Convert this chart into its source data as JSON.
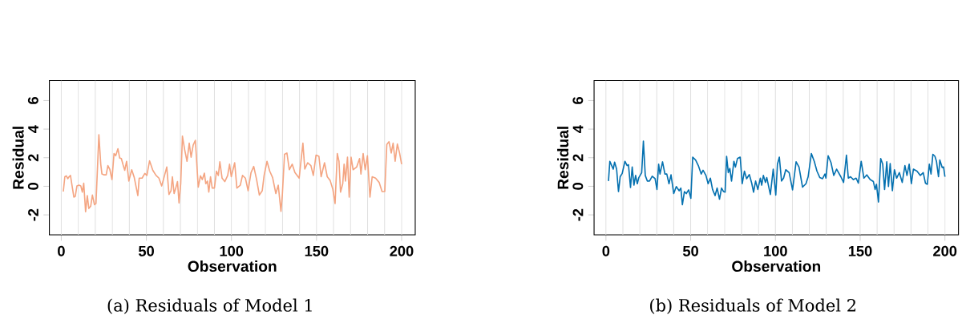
{
  "chart_data": [
    {
      "type": "line",
      "title": "(a) Residuals of Model 1",
      "xlabel": "Observation",
      "ylabel": "Residual",
      "xlim": [
        -7,
        208
      ],
      "ylim": [
        -3.4,
        7.4
      ],
      "xticks": [
        0,
        50,
        100,
        150,
        200
      ],
      "yticks": [
        -2,
        0,
        2,
        4,
        6
      ],
      "ref_lines": [
        {
          "axis": "x",
          "value": 0,
          "color": "#dcdcdc"
        },
        {
          "axis": "x",
          "value": 10,
          "color": "#dcdcdc"
        },
        {
          "axis": "x",
          "value": 20,
          "color": "#dcdcdc"
        },
        {
          "axis": "x",
          "value": 30,
          "color": "#dcdcdc"
        },
        {
          "axis": "x",
          "value": 40,
          "color": "#dcdcdc"
        },
        {
          "axis": "x",
          "value": 50,
          "color": "#dcdcdc"
        },
        {
          "axis": "x",
          "value": 60,
          "color": "#dcdcdc"
        },
        {
          "axis": "x",
          "value": 70,
          "color": "#dcdcdc"
        },
        {
          "axis": "x",
          "value": 80,
          "color": "#dcdcdc"
        },
        {
          "axis": "x",
          "value": 90,
          "color": "#dcdcdc"
        },
        {
          "axis": "x",
          "value": 100,
          "color": "#dcdcdc"
        },
        {
          "axis": "x",
          "value": 110,
          "color": "#dcdcdc"
        },
        {
          "axis": "x",
          "value": 120,
          "color": "#dcdcdc"
        },
        {
          "axis": "x",
          "value": 130,
          "color": "#dcdcdc"
        },
        {
          "axis": "x",
          "value": 140,
          "color": "#dcdcdc"
        },
        {
          "axis": "x",
          "value": 150,
          "color": "#dcdcdc"
        },
        {
          "axis": "x",
          "value": 160,
          "color": "#dcdcdc"
        },
        {
          "axis": "x",
          "value": 170,
          "color": "#dcdcdc"
        },
        {
          "axis": "x",
          "value": 180,
          "color": "#dcdcdc"
        },
        {
          "axis": "x",
          "value": 190,
          "color": "#dcdcdc"
        },
        {
          "axis": "x",
          "value": 200,
          "color": "#dcdcdc"
        }
      ],
      "series": [
        {
          "color": "#f4a582",
          "x": [
            1.2,
            2.1,
            3.0,
            3.8,
            4.6,
            5.4,
            6.3,
            7.4,
            8.2,
            9.2,
            10.4,
            11.5,
            12.4,
            13.2,
            14.3,
            15.3,
            16.2,
            17.3,
            18.3,
            19.5,
            20.4,
            21.1,
            22.1,
            23.2,
            23.9,
            25.2,
            26.4,
            27.4,
            28.5,
            29.8,
            31.0,
            32.0,
            33.3,
            34.3,
            35.3,
            36.3,
            37.3,
            38.4,
            39.7,
            41.4,
            42.9,
            45.0,
            45.8,
            47.5,
            49.1,
            50.3,
            51.9,
            53.8,
            55.7,
            57.4,
            59.0,
            60.7,
            62.0,
            63.3,
            64.5,
            65.3,
            66.3,
            67.3,
            68.3,
            69.2,
            70.2,
            71.2,
            72.5,
            73.9,
            75.2,
            76.3,
            77.5,
            78.8,
            80.5,
            81.8,
            82.9,
            84.1,
            84.9,
            85.9,
            86.7,
            87.7,
            88.7,
            90.0,
            91.2,
            92.3,
            93.2,
            94.5,
            96.1,
            97.8,
            98.9,
            99.9,
            101.9,
            103.2,
            105.2,
            106.5,
            108.2,
            109.8,
            111.5,
            113.1,
            114.8,
            116.4,
            118.1,
            119.2,
            120.9,
            122.5,
            124.2,
            126.1,
            127.5,
            129.1,
            129.9,
            131.2,
            132.6,
            134.0,
            135.7,
            137.3,
            139.8,
            142.0,
            143.1,
            144.8,
            146.7,
            148.1,
            149.7,
            151.4,
            152.7,
            154.7,
            156.3,
            158.0,
            159.6,
            160.9,
            162.2,
            163.2,
            164.1,
            165.4,
            166.2,
            167.0,
            168.2,
            169.2,
            170.3,
            171.5,
            173.6,
            175.3,
            176.1,
            177.4,
            178.6,
            179.9,
            181.4,
            182.7,
            184.7,
            186.8,
            188.5,
            190.1,
            191.3,
            192.6,
            193.9,
            195.0,
            196.2,
            197.5,
            198.8,
            200.0
          ],
          "values": [
            -0.37,
            0.67,
            0.73,
            0.53,
            0.67,
            0.76,
            0.08,
            -0.76,
            -0.71,
            0.02,
            0.08,
            0.02,
            -0.41,
            0.22,
            -1.78,
            -0.65,
            -1.55,
            -1.39,
            -0.61,
            -1.29,
            -1.2,
            0.76,
            3.61,
            1.55,
            0.86,
            0.8,
            0.8,
            1.45,
            1.2,
            0.47,
            2.29,
            2.14,
            2.63,
            1.98,
            1.94,
            1.51,
            1.12,
            1.75,
            0.37,
            1.16,
            0.61,
            -0.65,
            0.57,
            0.57,
            0.9,
            0.76,
            1.78,
            1.12,
            0.76,
            0.57,
            0.02,
            0.76,
            1.35,
            -0.57,
            -0.31,
            0.67,
            -0.51,
            -0.12,
            0.33,
            -1.16,
            0.18,
            3.51,
            2.57,
            1.75,
            3.02,
            2.04,
            2.88,
            3.22,
            -0.06,
            0.73,
            0.47,
            0.92,
            0.18,
            0.37,
            -0.41,
            0.67,
            -0.12,
            -0.12,
            1.06,
            0.76,
            1.71,
            0.57,
            0.33,
            0.76,
            1.55,
            0.67,
            1.65,
            -0.12,
            0.08,
            0.76,
            0.57,
            -0.31,
            0.96,
            1.39,
            0.47,
            -0.61,
            -0.31,
            0.76,
            1.75,
            1.06,
            0.61,
            -0.51,
            0.08,
            -1.75,
            -0.61,
            2.24,
            2.33,
            1.16,
            1.55,
            0.96,
            0.57,
            3.02,
            1.2,
            1.65,
            1.45,
            0.76,
            2.18,
            2.1,
            0.67,
            1.65,
            0.67,
            0.41,
            -0.22,
            -1.2,
            2.29,
            1.75,
            -0.41,
            0.18,
            1.55,
            0.37,
            2.04,
            -0.76,
            2.04,
            1.16,
            1.35,
            1.94,
            0.86,
            2.29,
            1.16,
            2.14,
            -0.76,
            0.67,
            0.57,
            0.27,
            -0.37,
            -0.37,
            2.92,
            3.12,
            2.33,
            3.02,
            1.75,
            2.96,
            2.33,
            1.55
          ]
        }
      ]
    },
    {
      "type": "line",
      "title": "(b) Residuals of Model 2",
      "xlabel": "Observation",
      "ylabel": "Residual",
      "xlim": [
        -7,
        208
      ],
      "ylim": [
        -3.4,
        7.4
      ],
      "xticks": [
        0,
        50,
        100,
        150,
        200
      ],
      "yticks": [
        -2,
        0,
        2,
        4,
        6
      ],
      "ref_lines": [
        {
          "axis": "x",
          "value": 0,
          "color": "#dcdcdc"
        },
        {
          "axis": "x",
          "value": 10,
          "color": "#dcdcdc"
        },
        {
          "axis": "x",
          "value": 20,
          "color": "#dcdcdc"
        },
        {
          "axis": "x",
          "value": 30,
          "color": "#dcdcdc"
        },
        {
          "axis": "x",
          "value": 40,
          "color": "#dcdcdc"
        },
        {
          "axis": "x",
          "value": 50,
          "color": "#dcdcdc"
        },
        {
          "axis": "x",
          "value": 60,
          "color": "#dcdcdc"
        },
        {
          "axis": "x",
          "value": 70,
          "color": "#dcdcdc"
        },
        {
          "axis": "x",
          "value": 80,
          "color": "#dcdcdc"
        },
        {
          "axis": "x",
          "value": 90,
          "color": "#dcdcdc"
        },
        {
          "axis": "x",
          "value": 100,
          "color": "#dcdcdc"
        },
        {
          "axis": "x",
          "value": 110,
          "color": "#dcdcdc"
        },
        {
          "axis": "x",
          "value": 120,
          "color": "#dcdcdc"
        },
        {
          "axis": "x",
          "value": 130,
          "color": "#dcdcdc"
        },
        {
          "axis": "x",
          "value": 140,
          "color": "#dcdcdc"
        },
        {
          "axis": "x",
          "value": 150,
          "color": "#dcdcdc"
        },
        {
          "axis": "x",
          "value": 160,
          "color": "#dcdcdc"
        },
        {
          "axis": "x",
          "value": 170,
          "color": "#dcdcdc"
        },
        {
          "axis": "x",
          "value": 180,
          "color": "#dcdcdc"
        },
        {
          "axis": "x",
          "value": 190,
          "color": "#dcdcdc"
        },
        {
          "axis": "x",
          "value": 200,
          "color": "#dcdcdc"
        }
      ],
      "series": [
        {
          "color": "#0571b0",
          "x": [
            1.5,
            2.3,
            3.4,
            4.3,
            5.1,
            6.3,
            7.4,
            8.4,
            9.6,
            11.2,
            12.5,
            13.3,
            14.5,
            15.5,
            16.5,
            17.5,
            18.5,
            19.4,
            21.1,
            22.1,
            23.2,
            24.4,
            25.7,
            27.3,
            29.0,
            30.1,
            31.1,
            31.9,
            33.4,
            34.8,
            35.9,
            37.2,
            38.4,
            40.0,
            41.5,
            43.2,
            44.2,
            45.1,
            46.3,
            47.4,
            48.8,
            50.1,
            51.2,
            52.9,
            54.5,
            56.2,
            57.3,
            59.0,
            60.3,
            61.6,
            62.9,
            64.4,
            65.6,
            67.0,
            68.2,
            69.4,
            70.3,
            71.2,
            72.2,
            73.1,
            74.1,
            75.5,
            76.4,
            77.6,
            79.2,
            80.4,
            81.7,
            83.0,
            84.6,
            86.0,
            87.1,
            88.3,
            89.6,
            91.1,
            91.9,
            92.9,
            94.1,
            94.9,
            97.0,
            98.7,
            100.2,
            101.2,
            102.3,
            103.6,
            104.8,
            106.1,
            108.1,
            110.1,
            112.2,
            113.9,
            116.0,
            118.0,
            119.3,
            121.2,
            122.9,
            124.5,
            126.2,
            127.8,
            129.2,
            129.8,
            131.1,
            132.8,
            134.4,
            136.1,
            138.6,
            140.2,
            141.9,
            143.0,
            144.3,
            146.0,
            147.6,
            148.9,
            150.6,
            152.2,
            153.9,
            155.9,
            157.8,
            158.8,
            159.6,
            160.8,
            162.1,
            163.3,
            164.4,
            165.7,
            166.7,
            167.7,
            169.0,
            170.2,
            171.5,
            173.1,
            174.8,
            176.4,
            177.6,
            178.9,
            180.2,
            181.4,
            183.5,
            185.5,
            187.2,
            188.5,
            189.6,
            190.8,
            191.8,
            192.9,
            194.1,
            195.0,
            196.2,
            197.0,
            198.4,
            199.2,
            200.0
          ],
          "values": [
            0.37,
            1.75,
            1.45,
            1.2,
            1.69,
            1.2,
            -0.37,
            0.67,
            0.9,
            1.75,
            1.45,
            1.51,
            -0.08,
            1.35,
            0.08,
            0.76,
            0.18,
            0.61,
            0.96,
            3.16,
            0.76,
            0.37,
            0.37,
            0.71,
            0.53,
            -0.22,
            1.55,
            0.86,
            1.71,
            0.86,
            0.86,
            0.18,
            0.8,
            -0.51,
            -0.02,
            -0.31,
            -0.12,
            -1.29,
            -0.37,
            -0.51,
            -0.25,
            -0.84,
            2.04,
            1.84,
            1.45,
            0.86,
            1.12,
            0.76,
            0.18,
            0.57,
            -0.22,
            -0.65,
            -0.12,
            -0.9,
            -0.12,
            -0.37,
            -0.41,
            2.1,
            0.96,
            1.25,
            0.37,
            1.75,
            1.35,
            1.94,
            2.04,
            0.18,
            1.06,
            0.53,
            0.82,
            0.22,
            -0.41,
            0.37,
            -0.22,
            0.57,
            0.08,
            0.76,
            0.27,
            0.61,
            -0.57,
            1.2,
            -0.61,
            1.55,
            2.04,
            0.37,
            0.57,
            1.16,
            0.96,
            -0.25,
            1.71,
            1.35,
            -0.06,
            0.18,
            0.67,
            2.29,
            1.75,
            1.06,
            0.61,
            0.53,
            0.86,
            0.57,
            2.14,
            1.65,
            0.76,
            1.2,
            0.67,
            0.27,
            2.18,
            0.57,
            0.67,
            0.47,
            0.57,
            0.22,
            1.75,
            0.57,
            0.8,
            0.47,
            0.33,
            -0.22,
            0.14,
            -1.1,
            1.94,
            1.55,
            -0.22,
            1.71,
            -0.02,
            1.59,
            -0.31,
            1.16,
            0.57,
            0.96,
            0.27,
            1.45,
            0.76,
            1.55,
            0.18,
            1.2,
            1.06,
            0.76,
            0.96,
            0.22,
            0.14,
            1.55,
            0.86,
            2.24,
            2.1,
            1.75,
            0.67,
            1.84,
            1.31,
            1.35,
            0.67
          ]
        }
      ]
    }
  ]
}
